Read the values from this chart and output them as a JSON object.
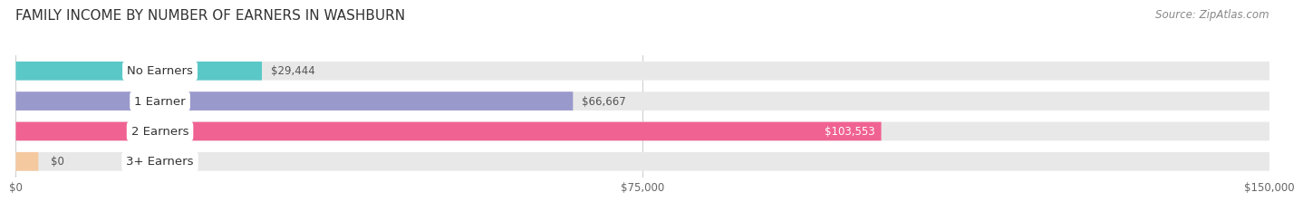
{
  "title": "FAMILY INCOME BY NUMBER OF EARNERS IN WASHBURN",
  "source": "Source: ZipAtlas.com",
  "categories": [
    "No Earners",
    "1 Earner",
    "2 Earners",
    "3+ Earners"
  ],
  "values": [
    29444,
    66667,
    103553,
    0
  ],
  "bar_colors": [
    "#5bc8c8",
    "#9999cc",
    "#f06292",
    "#f5c9a0"
  ],
  "bg_bar_color": "#e8e8e8",
  "value_labels": [
    "$29,444",
    "$66,667",
    "$103,553",
    "$0"
  ],
  "xlim": [
    0,
    150000
  ],
  "xticks": [
    0,
    75000,
    150000
  ],
  "xtick_labels": [
    "$0",
    "$75,000",
    "$150,000"
  ],
  "background_color": "#ffffff",
  "title_fontsize": 11,
  "source_fontsize": 8.5,
  "label_fontsize": 9.5,
  "value_fontsize": 8.5,
  "bar_height": 0.62,
  "bar_gap": 0.38
}
